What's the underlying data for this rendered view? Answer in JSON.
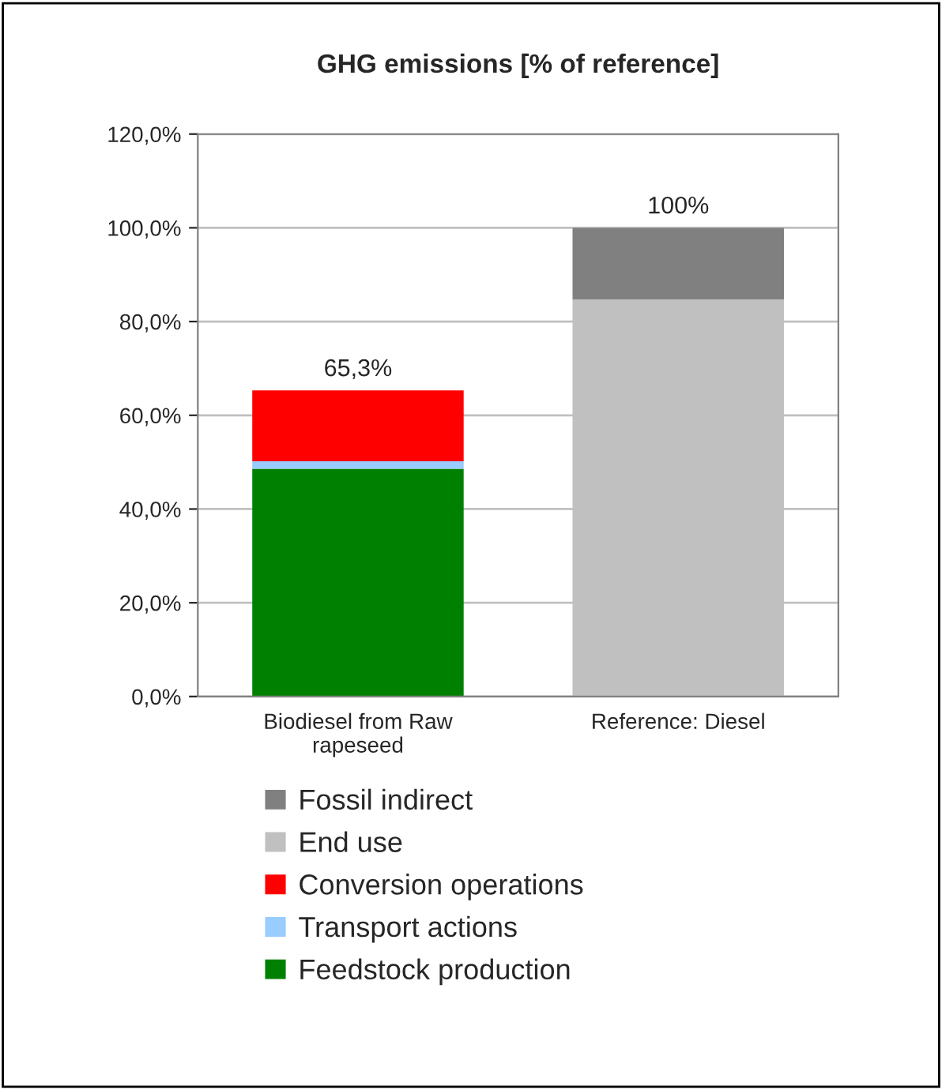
{
  "chart_data": {
    "type": "bar",
    "title": "GHG emissions [% of reference]",
    "stacked": true,
    "categories": [
      "Biodiesel from Raw\nrapeseed",
      "Reference: Diesel"
    ],
    "series": [
      {
        "name": "Feedstock production",
        "color": "#008000",
        "values": [
          48.6,
          null
        ]
      },
      {
        "name": "Transport actions",
        "color": "#99ccff",
        "values": [
          1.6,
          null
        ]
      },
      {
        "name": "Conversion operations",
        "color": "#ff0000",
        "values": [
          15.1,
          null
        ]
      },
      {
        "name": "End use",
        "color": "#c0c0c0",
        "values": [
          null,
          84.7
        ]
      },
      {
        "name": "Fossil indirect",
        "color": "#808080",
        "values": [
          null,
          15.3
        ]
      }
    ],
    "totals": [
      "65,3%",
      "100%"
    ],
    "ylim": [
      0,
      120
    ],
    "yticks": [
      {
        "value": 0,
        "label": "0,0%"
      },
      {
        "value": 20,
        "label": "20,0%"
      },
      {
        "value": 40,
        "label": "40,0%"
      },
      {
        "value": 60,
        "label": "60,0%"
      },
      {
        "value": 80,
        "label": "80,0%"
      },
      {
        "value": 100,
        "label": "100,0%"
      },
      {
        "value": 120,
        "label": "120,0%"
      }
    ],
    "grid": "y",
    "legend": "bottom"
  }
}
